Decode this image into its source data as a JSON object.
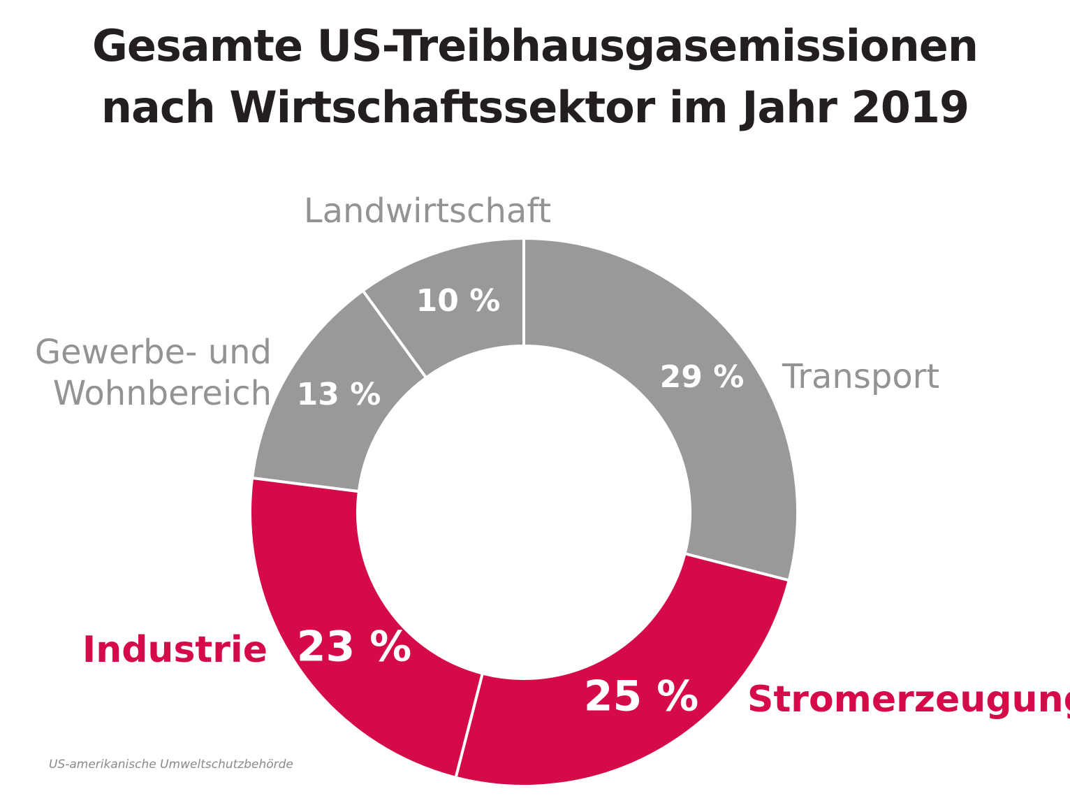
{
  "title_lines": [
    "Gesamte US-Treibhausgasemissionen",
    "nach Wirtschaftssektor im Jahr 2019"
  ],
  "source": "US-amerikanische Umweltschutzbehörde",
  "colors": {
    "grey": "#999999",
    "accent": "#d50a49",
    "label_grey": "#939393",
    "value_text": "#ffffff"
  },
  "chart_data": {
    "type": "pie",
    "donut": true,
    "title": "Gesamte US-Treibhausgasemissionen nach Wirtschaftssektor im Jahr 2019",
    "unit": "%",
    "slices": [
      {
        "key": "transport",
        "label_lines": [
          "Transport"
        ],
        "value": 29,
        "value_label": "29 %",
        "color": "#999999",
        "highlight": false
      },
      {
        "key": "strom",
        "label_lines": [
          "Stromerzeugung"
        ],
        "value": 25,
        "value_label": "25 %",
        "color": "#d50a49",
        "highlight": true
      },
      {
        "key": "industrie",
        "label_lines": [
          "Industrie"
        ],
        "value": 23,
        "value_label": "23 %",
        "color": "#d50a49",
        "highlight": true
      },
      {
        "key": "gewerbe",
        "label_lines": [
          "Gewerbe- und",
          "Wohnbereich"
        ],
        "value": 13,
        "value_label": "13 %",
        "color": "#999999",
        "highlight": false
      },
      {
        "key": "landwirt",
        "label_lines": [
          "Landwirtschaft"
        ],
        "value": 10,
        "value_label": "10 %",
        "color": "#999999",
        "highlight": false
      }
    ]
  }
}
